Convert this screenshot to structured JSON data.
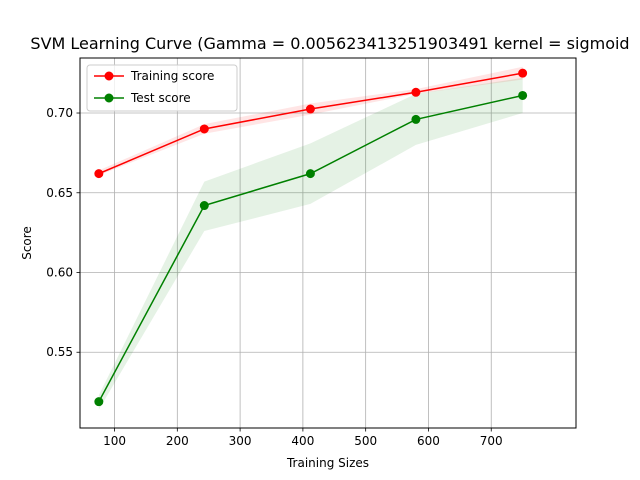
{
  "chart_data": {
    "type": "line",
    "title": "SVM Learning Curve (Gamma = 0.005623413251903491 kernel =  sigmoid",
    "xlabel": "Training Sizes",
    "ylabel": "Score",
    "xlim": [
      45,
      835
    ],
    "ylim": [
      0.5025,
      0.7345
    ],
    "xticks": [
      100,
      200,
      300,
      400,
      500,
      600,
      700
    ],
    "yticks": [
      0.55,
      0.6,
      0.65,
      0.7
    ],
    "ytick_labels": [
      "0.55",
      "0.60",
      "0.65",
      "0.70"
    ],
    "grid": true,
    "legend_position": "top-left",
    "x": [
      75,
      243,
      412,
      580,
      750
    ],
    "series": [
      {
        "name": "Training score",
        "color": "#ff0000",
        "fill_color": "#ff0000",
        "values": [
          0.662,
          0.69,
          0.7025,
          0.713,
          0.725
        ],
        "lower": [
          0.661,
          0.687,
          0.699,
          0.712,
          0.721
        ],
        "upper": [
          0.664,
          0.693,
          0.706,
          0.715,
          0.729
        ]
      },
      {
        "name": "Test score",
        "color": "#008000",
        "fill_color": "#008000",
        "values": [
          0.519,
          0.642,
          0.662,
          0.696,
          0.711
        ],
        "lower": [
          0.514,
          0.626,
          0.643,
          0.68,
          0.7
        ],
        "upper": [
          0.523,
          0.657,
          0.681,
          0.712,
          0.722
        ]
      }
    ]
  }
}
